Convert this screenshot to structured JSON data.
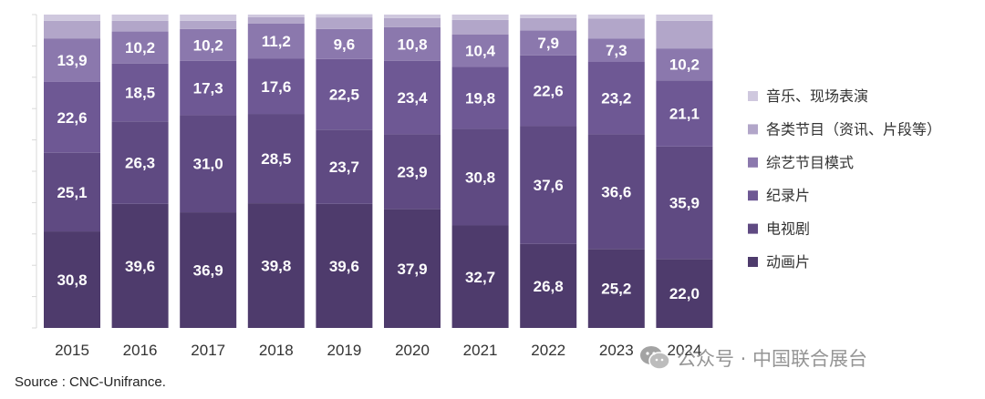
{
  "chart_data": {
    "type": "bar",
    "stacked": true,
    "normalized": true,
    "categories": [
      "2015",
      "2016",
      "2017",
      "2018",
      "2019",
      "2020",
      "2021",
      "2022",
      "2023",
      "2024"
    ],
    "ylim": [
      0,
      100
    ],
    "series": [
      {
        "name": "动画片",
        "color": "#4e3b6c",
        "values": [
          30.8,
          39.6,
          36.9,
          39.8,
          39.6,
          37.9,
          32.7,
          26.8,
          25.2,
          22.0
        ],
        "labels": [
          "30,8",
          "39,6",
          "36,9",
          "39,8",
          "39,6",
          "37,9",
          "32,7",
          "26,8",
          "25,2",
          "22,0"
        ]
      },
      {
        "name": "电视剧",
        "color": "#5f4a82",
        "values": [
          25.1,
          26.3,
          31.0,
          28.5,
          23.7,
          23.9,
          30.8,
          37.6,
          36.6,
          35.9
        ],
        "labels": [
          "25,1",
          "26,3",
          "31,0",
          "28,5",
          "23,7",
          "23,9",
          "30,8",
          "37,6",
          "36,6",
          "35,9"
        ]
      },
      {
        "name": "纪录片",
        "color": "#6e5894",
        "values": [
          22.6,
          18.5,
          17.3,
          17.6,
          22.5,
          23.4,
          19.8,
          22.6,
          23.2,
          21.1
        ],
        "labels": [
          "22,6",
          "18,5",
          "17,3",
          "17,6",
          "22,5",
          "23,4",
          "19,8",
          "22,6",
          "23,2",
          "21,1"
        ]
      },
      {
        "name": "综艺节目模式",
        "color": "#8b78ad",
        "values": [
          13.9,
          10.2,
          10.2,
          11.2,
          9.6,
          10.8,
          10.4,
          7.9,
          7.3,
          10.2
        ],
        "labels": [
          "13,9",
          "10,2",
          "10,2",
          "11,2",
          "9,6",
          "10,8",
          "10,4",
          "7,9",
          "7,3",
          "10,2"
        ]
      },
      {
        "name": "各类节目（资讯、片段等）",
        "color": "#b2a6c9",
        "values": [
          5.6,
          3.4,
          2.6,
          2.1,
          3.7,
          2.9,
          4.6,
          4.0,
          6.4,
          8.8
        ],
        "labels": []
      },
      {
        "name": "音乐、现场表演",
        "color": "#cfc8de",
        "values": [
          2.0,
          2.0,
          2.0,
          0.8,
          1.0,
          1.1,
          1.7,
          1.1,
          1.3,
          2.0
        ],
        "labels": []
      }
    ],
    "legend_position": "right",
    "source": "Source : CNC-Unifrance."
  },
  "watermark": {
    "text": "公众号 · 中国联合展台",
    "icon": "wechat-icon"
  }
}
